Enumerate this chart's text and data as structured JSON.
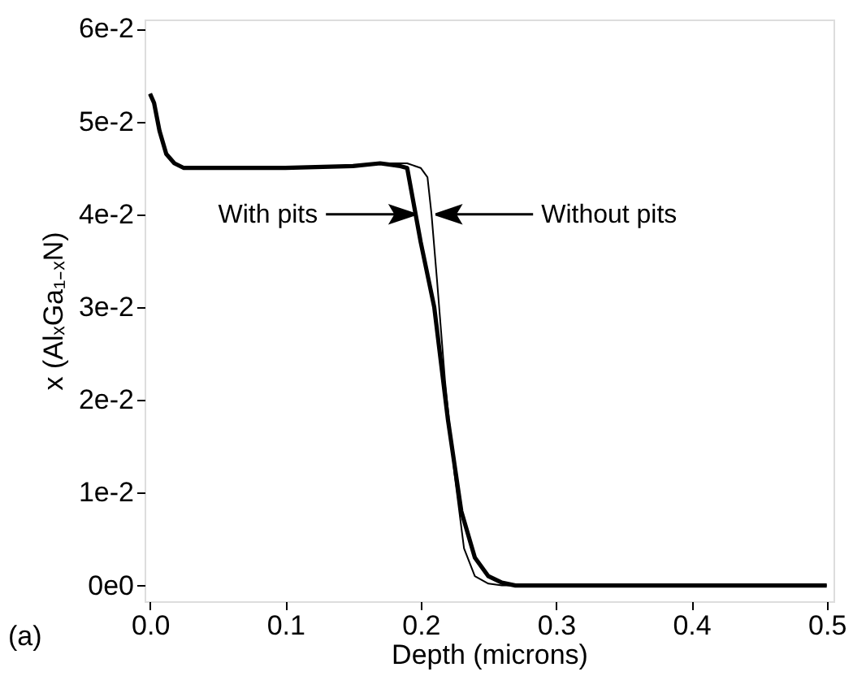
{
  "chart_data": {
    "type": "line",
    "xlabel": "Depth (microns)",
    "ylabel": "x (AlₓGa₁₋ₓN)",
    "xlim": [
      -0.004,
      0.505
    ],
    "ylim": [
      -0.0017,
      0.061
    ],
    "xticks": [
      {
        "value": 0,
        "label": "0.0"
      },
      {
        "value": 0.1,
        "label": "0.1"
      },
      {
        "value": 0.2,
        "label": "0.2"
      },
      {
        "value": 0.3,
        "label": "0.3"
      },
      {
        "value": 0.4,
        "label": "0.4"
      },
      {
        "value": 0.5,
        "label": "0.5"
      }
    ],
    "yticks": [
      {
        "value": 0,
        "label": "0e0"
      },
      {
        "value": 0.01,
        "label": "1e-2"
      },
      {
        "value": 0.02,
        "label": "2e-2"
      },
      {
        "value": 0.03,
        "label": "3e-2"
      },
      {
        "value": 0.04,
        "label": "4e-2"
      },
      {
        "value": 0.05,
        "label": "5e-2"
      },
      {
        "value": 0.06,
        "label": "6e-2"
      }
    ],
    "grid": false,
    "marker": "none",
    "line_style": "solid",
    "series": [
      {
        "color": "#000000",
        "x": [
          0,
          0.003,
          0.007,
          0.012,
          0.018,
          0.025,
          0.05,
          0.1,
          0.15,
          0.17,
          0.185,
          0.19,
          0.195,
          0.2,
          0.21,
          0.22,
          0.23,
          0.24,
          0.25,
          0.26,
          0.27,
          0.3,
          0.4,
          0.5
        ],
        "values": [
          0.053,
          0.052,
          0.049,
          0.0465,
          0.0455,
          0.045,
          0.045,
          0.045,
          0.0452,
          0.0455,
          0.0452,
          0.045,
          0.041,
          0.037,
          0.03,
          0.018,
          0.008,
          0.003,
          0.001,
          0.0003,
          0,
          0,
          0,
          0
        ]
      },
      {
        "color": "#000000",
        "x": [
          0,
          0.003,
          0.007,
          0.012,
          0.018,
          0.025,
          0.05,
          0.1,
          0.15,
          0.17,
          0.19,
          0.2,
          0.205,
          0.208,
          0.212,
          0.218,
          0.225,
          0.232,
          0.24,
          0.25,
          0.26,
          0.3,
          0.4,
          0.5
        ],
        "values": [
          0.053,
          0.052,
          0.049,
          0.0465,
          0.0455,
          0.045,
          0.045,
          0.045,
          0.0452,
          0.0455,
          0.0455,
          0.045,
          0.044,
          0.04,
          0.033,
          0.022,
          0.012,
          0.004,
          0.001,
          0.0002,
          0,
          0,
          0,
          0
        ]
      }
    ],
    "annotations": [
      {
        "text": "With pits",
        "x": 0.196,
        "y": 0.04
      },
      {
        "text": "Without pits",
        "x": 0.211,
        "y": 0.04
      },
      "(a)"
    ]
  }
}
